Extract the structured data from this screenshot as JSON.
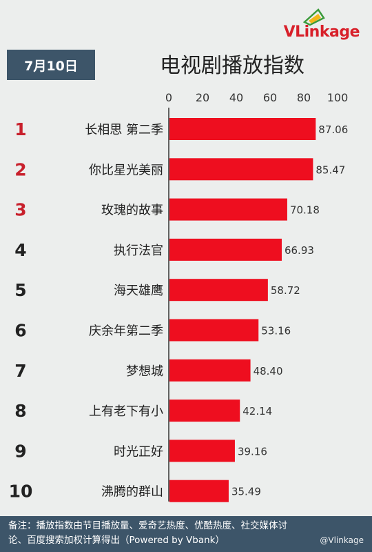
{
  "logo": {
    "text": "VLinkage",
    "v": "V",
    "rest": "Linkage"
  },
  "header": {
    "date": "7月10日",
    "title": "电视剧播放指数"
  },
  "footer": {
    "line1": "备注：播放指数由节目播放量、爱奇艺热度、优酷热度、社交媒体讨",
    "line2": "论、百度搜索加权计算得出（Powered by Vbank）",
    "watermark": "@Vlinkage"
  },
  "colors": {
    "bar": "#ee0e1f",
    "rank_top": "#c8202c",
    "rank": "#222222",
    "panel": "#3d5569"
  },
  "chart_data": {
    "type": "bar",
    "orientation": "horizontal",
    "title": "电视剧播放指数",
    "xlim": [
      0,
      100
    ],
    "xticks": [
      0,
      20,
      40,
      60,
      80,
      100
    ],
    "grid": false,
    "ranks": [
      "1",
      "2",
      "3",
      "4",
      "5",
      "6",
      "7",
      "8",
      "9",
      "10"
    ],
    "categories": [
      "长相思 第二季",
      "你比星光美丽",
      "玫瑰的故事",
      "执行法官",
      "海天雄鹰",
      "庆余年第二季",
      "梦想城",
      "上有老下有小",
      "时光正好",
      "沸腾的群山"
    ],
    "values": [
      87.06,
      85.47,
      70.18,
      66.93,
      58.72,
      53.16,
      48.4,
      42.14,
      39.16,
      35.49
    ],
    "value_labels": [
      "87.06",
      "85.47",
      "70.18",
      "66.93",
      "58.72",
      "53.16",
      "48.40",
      "42.14",
      "39.16",
      "35.49"
    ]
  }
}
